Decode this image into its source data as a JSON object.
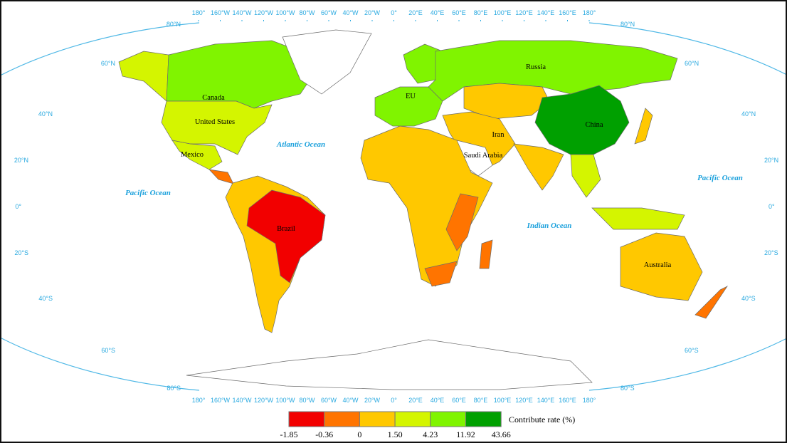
{
  "legend": {
    "title": "Contribute rate (%)",
    "breaks": [
      "-1.85",
      "-0.36",
      "0",
      "1.50",
      "4.23",
      "11.92",
      "43.66"
    ],
    "colors": [
      "#f20000",
      "#ff7400",
      "#ffc800",
      "#d4f500",
      "#80f400",
      "#00a000"
    ]
  },
  "no_data_color": "#ffffff",
  "longitude_labels": [
    "180°",
    "160°W",
    "140°W",
    "120°W",
    "100°W",
    "80°W",
    "60°W",
    "40°W",
    "20°W",
    "0°",
    "20°E",
    "40°E",
    "60°E",
    "80°E",
    "100°E",
    "120°E",
    "140°E",
    "160°E",
    "180°"
  ],
  "latitude_labels": [
    "80°N",
    "60°N",
    "40°N",
    "20°N",
    "0°",
    "20°S",
    "40°S",
    "60°S",
    "80°S"
  ],
  "oceans": [
    "Atlantic Ocean",
    "Pacific Ocean",
    "Pacific Ocean",
    "Indian Ocean"
  ],
  "regions": [
    {
      "id": "alaska",
      "class": 3,
      "label": ""
    },
    {
      "id": "canada",
      "class": 4,
      "label": "Canada"
    },
    {
      "id": "usa",
      "class": 3,
      "label": "United States"
    },
    {
      "id": "mexico",
      "class": 3,
      "label": "Mexico"
    },
    {
      "id": "central-america",
      "class": 1,
      "label": ""
    },
    {
      "id": "south-america",
      "class": 2,
      "label": ""
    },
    {
      "id": "brazil",
      "class": 0,
      "label": "Brazil"
    },
    {
      "id": "greenland",
      "class": -1,
      "label": ""
    },
    {
      "id": "scandinavia",
      "class": 4,
      "label": ""
    },
    {
      "id": "eu",
      "class": 4,
      "label": "EU"
    },
    {
      "id": "russia",
      "class": 4,
      "label": "Russia"
    },
    {
      "id": "central-asia",
      "class": 2,
      "label": ""
    },
    {
      "id": "china",
      "class": 5,
      "label": "China"
    },
    {
      "id": "middle-east",
      "class": 2,
      "label": "Iran"
    },
    {
      "id": "saudi-arabia",
      "class": -1,
      "label": "Saudi Arabia"
    },
    {
      "id": "india",
      "class": 2,
      "label": ""
    },
    {
      "id": "southeast-asia",
      "class": 3,
      "label": ""
    },
    {
      "id": "japan",
      "class": 2,
      "label": ""
    },
    {
      "id": "africa",
      "class": 2,
      "label": ""
    },
    {
      "id": "east-africa",
      "class": 1,
      "label": ""
    },
    {
      "id": "south-africa",
      "class": 1,
      "label": ""
    },
    {
      "id": "madagascar",
      "class": 1,
      "label": ""
    },
    {
      "id": "indonesia",
      "class": 3,
      "label": ""
    },
    {
      "id": "australia",
      "class": 2,
      "label": "Australia"
    },
    {
      "id": "new-zealand",
      "class": 1,
      "label": ""
    },
    {
      "id": "antarctica",
      "class": -1,
      "label": ""
    }
  ]
}
